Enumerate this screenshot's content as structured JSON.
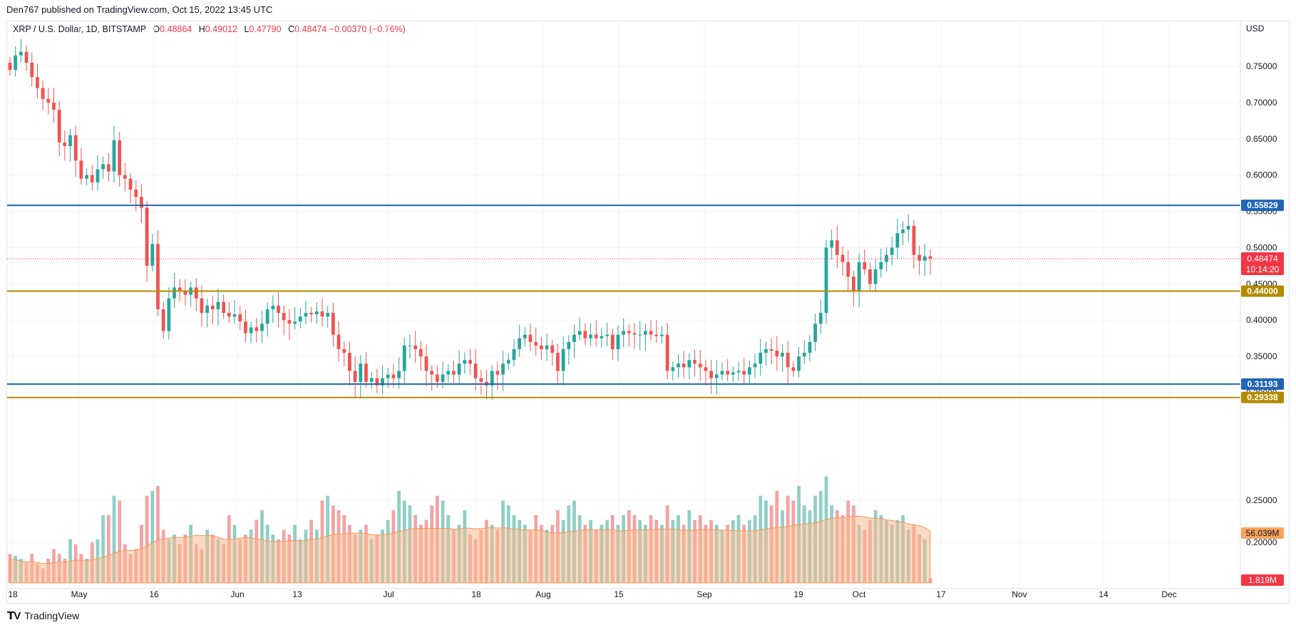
{
  "header": {
    "publisher": "Den767 published on TradingView.com, Oct 15, 2022 13:45 UTC"
  },
  "legend": {
    "symbol": "XRP / U.S. Dollar, 1D, BITSTAMP",
    "o_label": "O",
    "o_value": "0.48864",
    "h_label": "H",
    "h_value": "0.49012",
    "l_label": "L",
    "l_value": "0.47790",
    "c_label": "C",
    "c_value": "0.48474",
    "change": "−0.00370 (−0.76%)"
  },
  "axis": {
    "currency": "USD"
  },
  "footer": {
    "brand": "TradingView"
  },
  "colors": {
    "up": "#26a69a",
    "down": "#ef5350",
    "vol_up": "#8fcfc7",
    "vol_down": "#f4a3a3",
    "vol_ma": "#f7b98f",
    "blue_line": "#1e65b7",
    "gold_line": "#b58a00",
    "price_tag": "#f23645",
    "grid": "#f0f3fa"
  },
  "chart_data": {
    "type": "candlestick",
    "y_range": [
      0.3,
      0.8
    ],
    "y_ticks": [
      "0.75000",
      "0.70000",
      "0.65000",
      "0.60000",
      "0.55000",
      "0.50000",
      "0.45000",
      "0.40000",
      "0.35000",
      "0.30000"
    ],
    "volume_y_ticks": [
      "0.25000",
      "0.20000"
    ],
    "x_labels": [
      "18",
      "May",
      "16",
      "Jun",
      "13",
      "Jul",
      "18",
      "Aug",
      "15",
      "Sep",
      "19",
      "Oct",
      "17",
      "Nov",
      "14",
      "Dec"
    ],
    "levels": [
      {
        "value": 0.55829,
        "label": "0.55829",
        "color": "#1e65b7"
      },
      {
        "value": 0.44,
        "label": "0.44000",
        "color": "#b58a00"
      },
      {
        "value": 0.31193,
        "label": "0.31193",
        "color": "#1e65b7"
      },
      {
        "value": 0.29338,
        "label": "0.29338",
        "color": "#b58a00"
      }
    ],
    "last_price": {
      "value": 0.48474,
      "label": "0.48474",
      "countdown": "10:14:20"
    },
    "volume_ma_label": "56.039M",
    "volume_last_label": "1.819M",
    "candles_close": [
      0.745,
      0.765,
      0.77,
      0.755,
      0.735,
      0.72,
      0.705,
      0.7,
      0.69,
      0.645,
      0.64,
      0.655,
      0.62,
      0.595,
      0.6,
      0.59,
      0.608,
      0.615,
      0.605,
      0.648,
      0.6,
      0.595,
      0.58,
      0.57,
      0.555,
      0.475,
      0.505,
      0.415,
      0.385,
      0.43,
      0.445,
      0.44,
      0.435,
      0.445,
      0.43,
      0.41,
      0.42,
      0.415,
      0.425,
      0.41,
      0.405,
      0.408,
      0.398,
      0.382,
      0.39,
      0.385,
      0.395,
      0.415,
      0.42,
      0.41,
      0.4,
      0.395,
      0.398,
      0.405,
      0.41,
      0.408,
      0.412,
      0.405,
      0.41,
      0.38,
      0.36,
      0.355,
      0.33,
      0.315,
      0.34,
      0.315,
      0.32,
      0.31,
      0.32,
      0.325,
      0.32,
      0.33,
      0.365,
      0.365,
      0.36,
      0.35,
      0.33,
      0.325,
      0.315,
      0.325,
      0.33,
      0.325,
      0.34,
      0.345,
      0.34,
      0.32,
      0.315,
      0.31,
      0.33,
      0.325,
      0.34,
      0.345,
      0.36,
      0.375,
      0.38,
      0.37,
      0.365,
      0.36,
      0.365,
      0.355,
      0.33,
      0.36,
      0.37,
      0.38,
      0.385,
      0.375,
      0.38,
      0.375,
      0.378,
      0.38,
      0.36,
      0.38,
      0.385,
      0.382,
      0.38,
      0.38,
      0.385,
      0.38,
      0.378,
      0.38,
      0.33,
      0.335,
      0.34,
      0.335,
      0.345,
      0.34,
      0.335,
      0.33,
      0.32,
      0.325,
      0.33,
      0.325,
      0.328,
      0.33,
      0.325,
      0.335,
      0.34,
      0.355,
      0.36,
      0.358,
      0.35,
      0.355,
      0.335,
      0.33,
      0.35,
      0.355,
      0.37,
      0.395,
      0.41,
      0.5,
      0.51,
      0.49,
      0.48,
      0.46,
      0.44,
      0.48,
      0.47,
      0.45,
      0.47,
      0.48,
      0.49,
      0.5,
      0.52,
      0.525,
      0.53,
      0.49,
      0.482,
      0.488,
      0.48474
    ],
    "volume_relative": [
      0.3,
      0.28,
      0.25,
      0.22,
      0.3,
      0.2,
      0.15,
      0.25,
      0.35,
      0.3,
      0.25,
      0.45,
      0.4,
      0.3,
      0.25,
      0.42,
      0.45,
      0.7,
      0.7,
      0.9,
      0.85,
      0.4,
      0.3,
      0.35,
      0.6,
      0.9,
      0.95,
      1.0,
      0.55,
      0.45,
      0.5,
      0.4,
      0.5,
      0.6,
      0.4,
      0.35,
      0.55,
      0.5,
      0.45,
      0.4,
      0.7,
      0.6,
      0.45,
      0.5,
      0.55,
      0.65,
      0.75,
      0.6,
      0.5,
      0.45,
      0.55,
      0.5,
      0.6,
      0.45,
      0.55,
      0.65,
      0.55,
      0.85,
      0.9,
      0.8,
      0.75,
      0.7,
      0.6,
      0.5,
      0.55,
      0.6,
      0.45,
      0.5,
      0.55,
      0.65,
      0.75,
      0.95,
      0.85,
      0.8,
      0.7,
      0.6,
      0.65,
      0.8,
      0.9,
      0.85,
      0.7,
      0.55,
      0.6,
      0.75,
      0.5,
      0.45,
      0.55,
      0.65,
      0.6,
      0.55,
      0.85,
      0.8,
      0.7,
      0.65,
      0.6,
      0.55,
      0.7,
      0.6,
      0.55,
      0.6,
      0.75,
      0.65,
      0.8,
      0.85,
      0.7,
      0.6,
      0.65,
      0.55,
      0.6,
      0.65,
      0.7,
      0.6,
      0.7,
      0.75,
      0.7,
      0.65,
      0.6,
      0.7,
      0.65,
      0.6,
      0.8,
      0.65,
      0.7,
      0.6,
      0.75,
      0.65,
      0.7,
      0.6,
      0.65,
      0.6,
      0.55,
      0.6,
      0.65,
      0.7,
      0.6,
      0.65,
      0.7,
      0.9,
      0.85,
      0.8,
      0.95,
      0.75,
      0.9,
      0.85,
      1.0,
      0.8,
      0.75,
      0.9,
      0.95,
      1.1,
      0.8,
      0.75,
      0.7,
      0.85,
      0.8,
      0.6,
      0.55,
      0.65,
      0.75,
      0.7,
      0.65,
      0.6,
      0.65,
      0.7,
      0.55,
      0.6,
      0.5,
      0.45,
      0.05
    ]
  }
}
